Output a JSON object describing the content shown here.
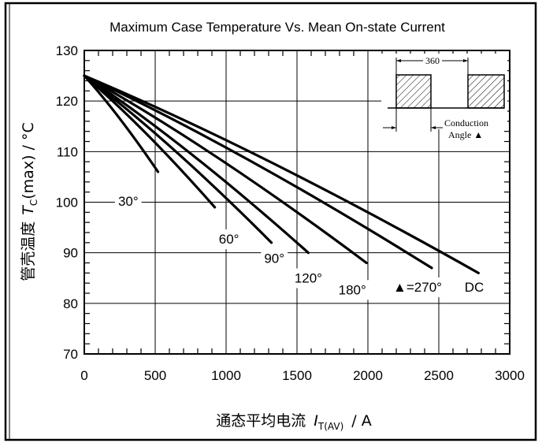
{
  "chart_data": {
    "type": "line",
    "title": "Maximum Case Temperature Vs. Mean On-state Current",
    "ylabel_cn": "管壳温度",
    "ylabel_sym": "T",
    "ylabel_sub": "C",
    "ylabel_rest": "(max) / °C",
    "xlabel_cn": "通态平均电流",
    "xlabel_sym": "I",
    "xlabel_sub": "T(AV)",
    "xlabel_rest": "/  A",
    "xlim": [
      0,
      3000
    ],
    "ylim": [
      70,
      130
    ],
    "xticks": [
      0,
      500,
      1000,
      1500,
      2000,
      2500,
      3000
    ],
    "yticks": [
      70,
      80,
      90,
      100,
      110,
      120,
      130
    ],
    "grid": true,
    "series": [
      {
        "name": "30°",
        "x": [
          0,
          520
        ],
        "y": [
          125,
          106
        ]
      },
      {
        "name": "60°",
        "x": [
          0,
          920
        ],
        "y": [
          125,
          99
        ]
      },
      {
        "name": "90°",
        "x": [
          0,
          1320
        ],
        "y": [
          125,
          92
        ]
      },
      {
        "name": "120°",
        "x": [
          0,
          1580
        ],
        "y": [
          125,
          90
        ]
      },
      {
        "name": "180°",
        "x": [
          0,
          1990
        ],
        "y": [
          125,
          88
        ]
      },
      {
        "name": "270°",
        "x": [
          0,
          2450
        ],
        "y": [
          125,
          87
        ]
      },
      {
        "name": "DC",
        "x": [
          0,
          2780
        ],
        "y": [
          125,
          86
        ]
      }
    ],
    "annotations": [
      {
        "text": "30°",
        "x": 310,
        "y": 100
      },
      {
        "text": "60°",
        "x": 1020,
        "y": 92.5
      },
      {
        "text": "90°",
        "x": 1340,
        "y": 88.7
      },
      {
        "text": "120°",
        "x": 1580,
        "y": 84.8
      },
      {
        "text": "180°",
        "x": 1890,
        "y": 82.5
      },
      {
        "text": "▲=270°",
        "x": 2350,
        "y": 83
      },
      {
        "text": "DC",
        "x": 2750,
        "y": 83
      }
    ],
    "inset": {
      "dimension": "360",
      "caption_line1": "Conduction",
      "caption_line2": "Angle ▲"
    }
  }
}
